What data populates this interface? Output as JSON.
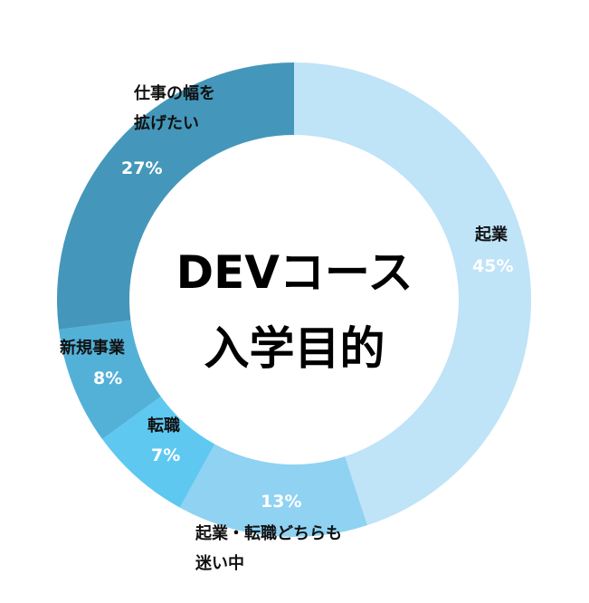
{
  "chart_data": {
    "type": "pie",
    "donut": true,
    "center_title": [
      "DEVコース",
      "入学目的"
    ],
    "slices": [
      {
        "label_lines": [
          "起業"
        ],
        "value": 45,
        "value_label": "45%",
        "color": "#bfe3f7"
      },
      {
        "label_lines": [
          "起業・転職どちらも",
          "迷い中"
        ],
        "value": 13,
        "value_label": "13%",
        "color": "#8fd2f2"
      },
      {
        "label_lines": [
          "転職"
        ],
        "value": 7,
        "value_label": "7%",
        "color": "#5ec8f1"
      },
      {
        "label_lines": [
          "新規事業"
        ],
        "value": 8,
        "value_label": "8%",
        "color": "#53b1d8"
      },
      {
        "label_lines": [
          "仕事の幅を",
          "拡げたい"
        ],
        "value": 27,
        "value_label": "27%",
        "color": "#4497ba"
      }
    ]
  }
}
